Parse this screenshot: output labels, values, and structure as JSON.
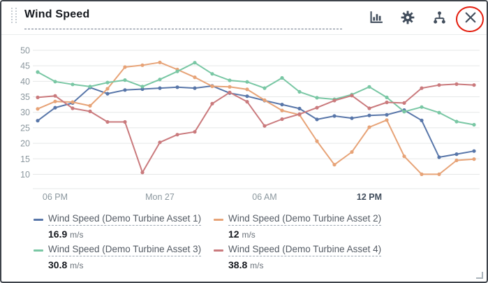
{
  "widget": {
    "title": "Wind Speed"
  },
  "header": {
    "icons": [
      "bar-chart-icon",
      "settings-gear-icon",
      "asset-hierarchy-icon",
      "close-icon"
    ],
    "annotation": {
      "shape": "red-ellipse-highlight",
      "color": "#e31b0c",
      "around": "close-icon"
    }
  },
  "chart_data": {
    "type": "line",
    "title": "Wind Speed",
    "x_description": "hourly samples from 5 PM through Mon 27 6 PM",
    "x_tick_labels": [
      {
        "label": "06 PM",
        "data_index": 1,
        "bold": false
      },
      {
        "label": "Mon 27",
        "data_index": 7,
        "bold": false
      },
      {
        "label": "06 AM",
        "data_index": 13,
        "bold": false
      },
      {
        "label": "12 PM",
        "data_index": 19,
        "bold": true
      }
    ],
    "y_ticks": [
      50,
      45,
      40,
      35,
      30,
      25,
      20,
      15,
      10
    ],
    "ylim": [
      5.4,
      53
    ],
    "grid": "horizontal-only",
    "legend_position": "bottom",
    "series": [
      {
        "name": "Wind Speed (Demo Turbine Asset 1)",
        "color": "#5876a9",
        "values": [
          27.3,
          31.5,
          33.0,
          38.0,
          36.0,
          37.2,
          37.5,
          37.8,
          38.1,
          37.8,
          38.5,
          36.2,
          35.2,
          33.8,
          32.5,
          31.2,
          27.7,
          28.8,
          28.1,
          29.0,
          29.2,
          30.7,
          27.4,
          15.5,
          16.5,
          17.5
        ]
      },
      {
        "name": "Wind Speed (Demo Turbine Asset 2)",
        "color": "#e7a377",
        "values": [
          31.1,
          33.5,
          33.3,
          32.1,
          37.6,
          44.6,
          45.2,
          46.1,
          43.8,
          41.3,
          38.4,
          38.2,
          37.4,
          33.9,
          30.6,
          29.2,
          20.7,
          13.1,
          17.2,
          25.2,
          27.5,
          15.8,
          10.0,
          10.0,
          14.5,
          14.9
        ]
      },
      {
        "name": "Wind Speed (Demo Turbine Asset 3)",
        "color": "#79c7a4",
        "values": [
          43.0,
          39.9,
          39.0,
          38.3,
          39.6,
          40.4,
          38.3,
          40.6,
          43.2,
          46.0,
          42.4,
          40.3,
          39.8,
          37.8,
          41.1,
          36.6,
          34.7,
          34.2,
          35.7,
          38.2,
          34.8,
          30.2,
          31.7,
          29.9,
          27.0,
          26.0
        ]
      },
      {
        "name": "Wind Speed (Demo Turbine Asset 4)",
        "color": "#ca7a7d",
        "values": [
          34.8,
          35.3,
          31.3,
          30.3,
          26.9,
          26.9,
          10.6,
          20.3,
          22.8,
          23.7,
          32.8,
          36.4,
          33.4,
          25.6,
          27.8,
          29.4,
          31.5,
          33.8,
          35.4,
          31.3,
          33.2,
          33.0,
          37.8,
          38.8,
          39.1,
          38.8
        ]
      }
    ],
    "axis_label_color": "#8b979e",
    "bold_tick_color": "#414d5c",
    "gridline_color": "#e5e7e7"
  },
  "legend": {
    "items": [
      {
        "label": "Wind Speed (Demo Turbine Asset 1)",
        "value": "16.9",
        "unit": "m/s",
        "color": "#5876a9"
      },
      {
        "label": "Wind Speed (Demo Turbine Asset 2)",
        "value": "12",
        "unit": "m/s",
        "color": "#e7a377"
      },
      {
        "label": "Wind Speed (Demo Turbine Asset 3)",
        "value": "30.8",
        "unit": "m/s",
        "color": "#79c7a4"
      },
      {
        "label": "Wind Speed (Demo Turbine Asset 4)",
        "value": "38.8",
        "unit": "m/s",
        "color": "#ca7a7d"
      }
    ]
  }
}
